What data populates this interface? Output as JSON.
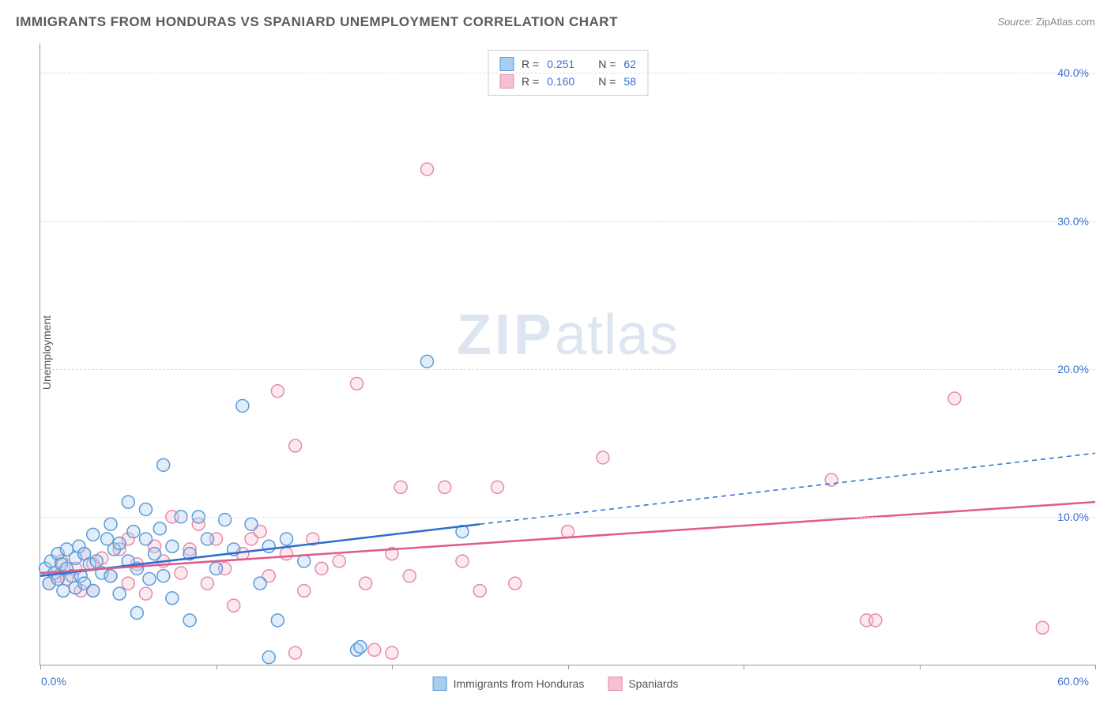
{
  "title": "IMMIGRANTS FROM HONDURAS VS SPANIARD UNEMPLOYMENT CORRELATION CHART",
  "source_label": "Source:",
  "source_value": "ZipAtlas.com",
  "watermark_zip": "ZIP",
  "watermark_atlas": "atlas",
  "y_axis_label": "Unemployment",
  "chart": {
    "type": "scatter",
    "xlim": [
      0,
      60
    ],
    "ylim": [
      0,
      42
    ],
    "x_tick_positions": [
      0,
      10,
      20,
      30,
      40,
      50,
      60
    ],
    "x_tick_labels_shown": {
      "0": "0.0%",
      "60": "60.0%"
    },
    "y_gridlines": [
      10,
      20,
      30,
      40
    ],
    "y_tick_labels": {
      "10": "10.0%",
      "20": "20.0%",
      "30": "30.0%",
      "40": "40.0%"
    },
    "background_color": "#ffffff",
    "grid_color": "#dddddd",
    "axis_color": "#999999",
    "label_color": "#3a6fd8",
    "marker_radius": 8,
    "marker_stroke_width": 1.5,
    "marker_fill_opacity": 0.35,
    "trend_line_width": 2.5,
    "series": [
      {
        "name": "Immigrants from Honduras",
        "short": "honduras",
        "color_stroke": "#5a9bd8",
        "color_fill": "#a8cdf0",
        "trend_color": "#2d6cd0",
        "r_value": "0.251",
        "n_value": "62",
        "trend_solid": {
          "x1": 0,
          "y1": 6.0,
          "x2": 25,
          "y2": 9.5
        },
        "trend_dashed": {
          "x1": 25,
          "y1": 9.5,
          "x2": 60,
          "y2": 14.3
        },
        "points": [
          [
            0.3,
            6.5
          ],
          [
            0.5,
            5.5
          ],
          [
            0.6,
            7.0
          ],
          [
            0.8,
            6.2
          ],
          [
            1.0,
            5.8
          ],
          [
            1.0,
            7.5
          ],
          [
            1.2,
            6.8
          ],
          [
            1.3,
            5.0
          ],
          [
            1.5,
            6.5
          ],
          [
            1.5,
            7.8
          ],
          [
            1.8,
            6.0
          ],
          [
            2.0,
            5.2
          ],
          [
            2.0,
            7.2
          ],
          [
            2.2,
            8.0
          ],
          [
            2.3,
            6.0
          ],
          [
            2.5,
            5.5
          ],
          [
            2.5,
            7.5
          ],
          [
            2.8,
            6.8
          ],
          [
            3.0,
            8.8
          ],
          [
            3.0,
            5.0
          ],
          [
            3.2,
            7.0
          ],
          [
            3.5,
            6.2
          ],
          [
            3.8,
            8.5
          ],
          [
            4.0,
            9.5
          ],
          [
            4.0,
            6.0
          ],
          [
            4.2,
            7.8
          ],
          [
            4.5,
            8.2
          ],
          [
            4.5,
            4.8
          ],
          [
            5.0,
            11.0
          ],
          [
            5.0,
            7.0
          ],
          [
            5.3,
            9.0
          ],
          [
            5.5,
            6.5
          ],
          [
            5.5,
            3.5
          ],
          [
            6.0,
            8.5
          ],
          [
            6.0,
            10.5
          ],
          [
            6.2,
            5.8
          ],
          [
            6.5,
            7.5
          ],
          [
            6.8,
            9.2
          ],
          [
            7.0,
            13.5
          ],
          [
            7.0,
            6.0
          ],
          [
            7.5,
            8.0
          ],
          [
            7.5,
            4.5
          ],
          [
            8.0,
            10.0
          ],
          [
            8.5,
            7.5
          ],
          [
            8.5,
            3.0
          ],
          [
            9.0,
            10.0
          ],
          [
            9.5,
            8.5
          ],
          [
            10.0,
            6.5
          ],
          [
            10.5,
            9.8
          ],
          [
            11.0,
            7.8
          ],
          [
            11.5,
            17.5
          ],
          [
            12.0,
            9.5
          ],
          [
            12.5,
            5.5
          ],
          [
            13.0,
            8.0
          ],
          [
            13.5,
            3.0
          ],
          [
            14.0,
            8.5
          ],
          [
            15.0,
            7.0
          ],
          [
            18.0,
            1.0
          ],
          [
            18.2,
            1.2
          ],
          [
            22.0,
            20.5
          ],
          [
            24.0,
            9.0
          ],
          [
            13.0,
            0.5
          ]
        ]
      },
      {
        "name": "Spaniards",
        "short": "spaniards",
        "color_stroke": "#e88ba8",
        "color_fill": "#f5c0d0",
        "trend_color": "#e05a8a",
        "r_value": "0.160",
        "n_value": "58",
        "trend_solid": {
          "x1": 0,
          "y1": 6.2,
          "x2": 60,
          "y2": 11.0
        },
        "trend_dashed": null,
        "points": [
          [
            0.5,
            5.5
          ],
          [
            1.0,
            6.0
          ],
          [
            1.2,
            7.0
          ],
          [
            1.5,
            5.8
          ],
          [
            2.0,
            6.5
          ],
          [
            2.3,
            5.0
          ],
          [
            2.5,
            7.5
          ],
          [
            3.0,
            6.8
          ],
          [
            3.0,
            5.0
          ],
          [
            3.5,
            7.2
          ],
          [
            4.0,
            6.0
          ],
          [
            4.5,
            7.8
          ],
          [
            5.0,
            8.5
          ],
          [
            5.0,
            5.5
          ],
          [
            5.5,
            6.8
          ],
          [
            6.0,
            4.8
          ],
          [
            6.5,
            8.0
          ],
          [
            7.0,
            7.0
          ],
          [
            7.5,
            10.0
          ],
          [
            8.0,
            6.2
          ],
          [
            8.5,
            7.8
          ],
          [
            9.0,
            9.5
          ],
          [
            9.5,
            5.5
          ],
          [
            10.0,
            8.5
          ],
          [
            10.5,
            6.5
          ],
          [
            11.0,
            4.0
          ],
          [
            11.5,
            7.5
          ],
          [
            12.0,
            8.5
          ],
          [
            12.5,
            9.0
          ],
          [
            13.0,
            6.0
          ],
          [
            13.5,
            18.5
          ],
          [
            14.0,
            7.5
          ],
          [
            14.5,
            14.8
          ],
          [
            15.0,
            5.0
          ],
          [
            15.5,
            8.5
          ],
          [
            16.0,
            6.5
          ],
          [
            17.0,
            7.0
          ],
          [
            18.0,
            19.0
          ],
          [
            18.5,
            5.5
          ],
          [
            19.0,
            1.0
          ],
          [
            20.0,
            7.5
          ],
          [
            20.5,
            12.0
          ],
          [
            21.0,
            6.0
          ],
          [
            22.0,
            33.5
          ],
          [
            23.0,
            12.0
          ],
          [
            24.0,
            7.0
          ],
          [
            25.0,
            5.0
          ],
          [
            26.0,
            12.0
          ],
          [
            27.0,
            5.5
          ],
          [
            30.0,
            9.0
          ],
          [
            32.0,
            14.0
          ],
          [
            45.0,
            12.5
          ],
          [
            47.0,
            3.0
          ],
          [
            47.5,
            3.0
          ],
          [
            52.0,
            18.0
          ],
          [
            57.0,
            2.5
          ],
          [
            14.5,
            0.8
          ],
          [
            20.0,
            0.8
          ]
        ]
      }
    ]
  },
  "bottom_legend": {
    "series1_label": "Immigrants from Honduras",
    "series2_label": "Spaniards"
  },
  "top_legend": {
    "r_label": "R =",
    "n_label": "N ="
  }
}
